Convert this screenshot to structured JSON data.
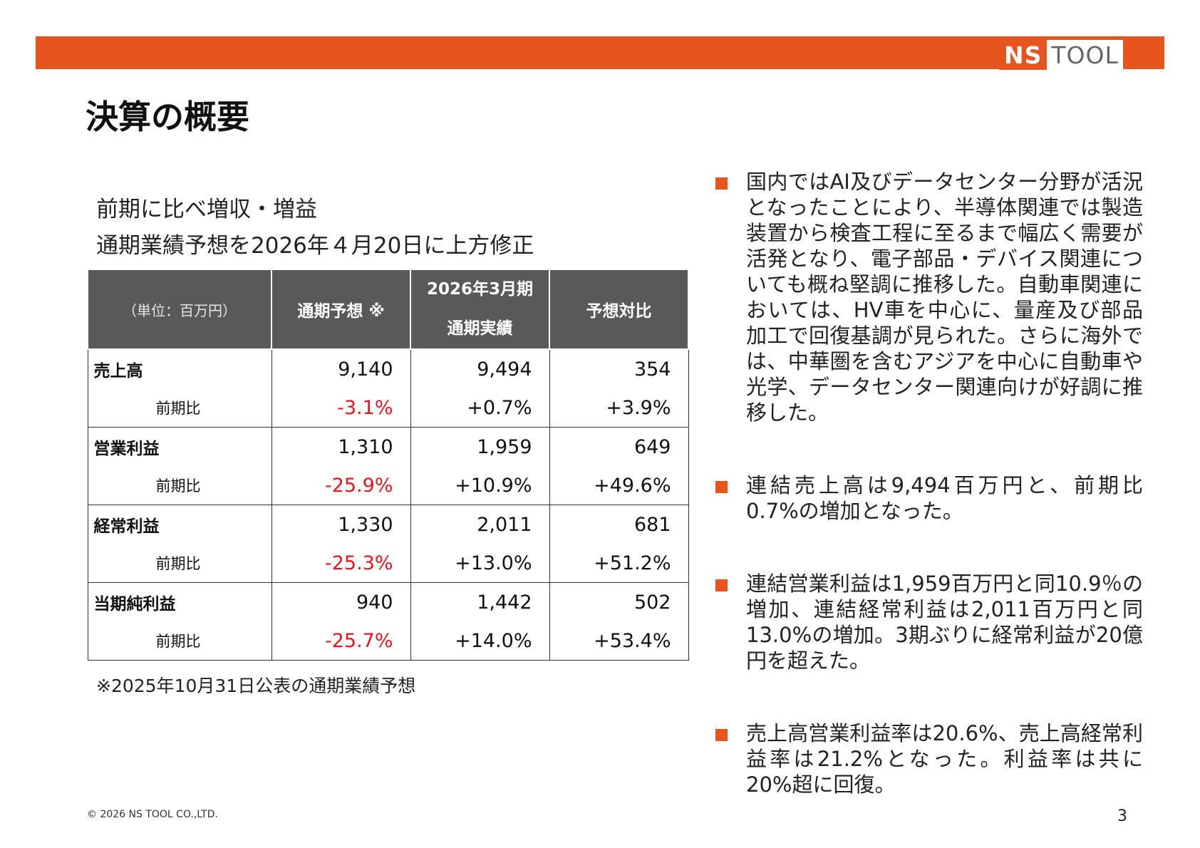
{
  "header": {
    "logo_left": "NS",
    "logo_right": "TOOL",
    "title": "決算の概要"
  },
  "summary": {
    "line1": "前期に比べ増収・増益",
    "line2": "通期業績予想を2026年４月20日に上方修正"
  },
  "table": {
    "headers": {
      "unit": "（単位：百万円）",
      "forecast": "通期予想 ※",
      "actual_line1": "2026年3月期",
      "actual_line2": "通期実績",
      "diff": "予想対比"
    },
    "rows": [
      {
        "label": "売上高",
        "forecast": "9,140",
        "actual": "9,494",
        "diff": "354",
        "sub_label": "前期比",
        "forecast_yoy": "-3.1%",
        "actual_yoy": "+0.7%",
        "diff_yoy": "+3.9%"
      },
      {
        "label": "営業利益",
        "forecast": "1,310",
        "actual": "1,959",
        "diff": "649",
        "sub_label": "前期比",
        "forecast_yoy": "-25.9%",
        "actual_yoy": "+10.9%",
        "diff_yoy": "+49.6%"
      },
      {
        "label": "経常利益",
        "forecast": "1,330",
        "actual": "2,011",
        "diff": "681",
        "sub_label": "前期比",
        "forecast_yoy": "-25.3%",
        "actual_yoy": "+13.0%",
        "diff_yoy": "+51.2%"
      },
      {
        "label": "当期純利益",
        "forecast": "940",
        "actual": "1,442",
        "diff": "502",
        "sub_label": "前期比",
        "forecast_yoy": "-25.7%",
        "actual_yoy": "+14.0%",
        "diff_yoy": "+53.4%"
      }
    ],
    "footnote": "※2025年10月31日公表の通期業績予想"
  },
  "bullets": [
    "国内ではAI及びデータセンター分野が活況となったことにより、半導体関連では製造装置から検査工程に至るまで幅広く需要が活発となり、電子部品・デバイス関連についても概ね堅調に推移した。自動車関連においては、HV車を中心に、量産及び部品加工で回復基調が見られた。さらに海外では、中華圏を含むアジアを中心に自動車や光学、データセンター関連向けが好調に推移した。",
    "連結売上高は9,494百万円と、前期比0.7%の増加となった。",
    "連結営業利益は1,959百万円と同10.9％の増加、連結経常利益は2,011百万円と同13.0%の増加。3期ぶりに経常利益が20億円を超えた。",
    "売上高営業利益率は20.6%、売上高経常利益率は21.2%となった。利益率は共に20%超に回復。"
  ],
  "footer": {
    "copyright": "© 2026 NS TOOL CO.,LTD.",
    "page": "3"
  },
  "colors": {
    "accent": "#e8541e",
    "header_bg": "#595959",
    "negative": "#e8141e"
  }
}
